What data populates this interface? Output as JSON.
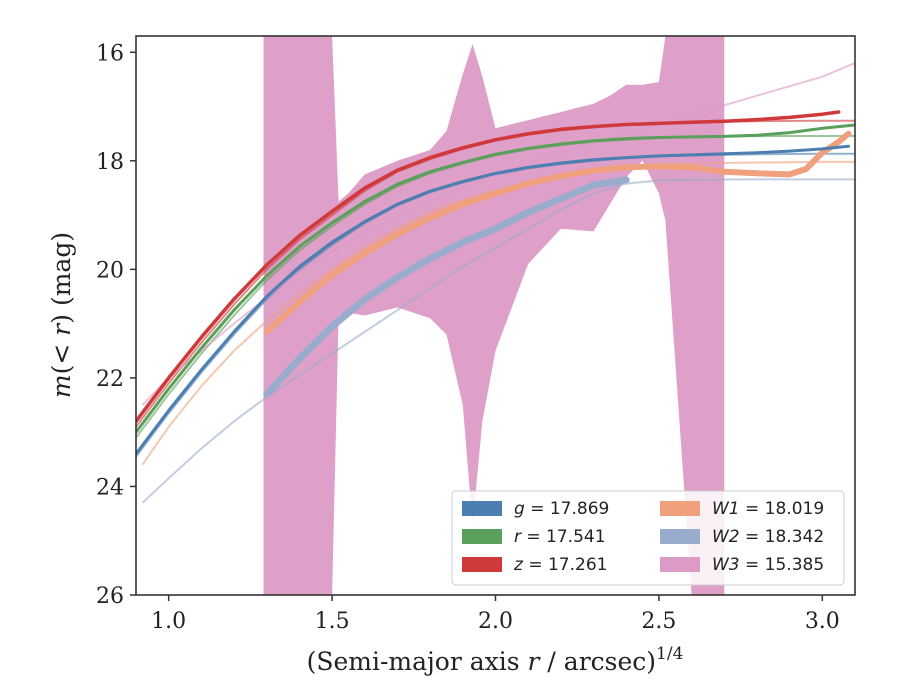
{
  "chart_data": {
    "type": "line",
    "xlabel": "(Semi-major axis r / arcsec)^{1/4}",
    "ylabel": "m(< r) (mag)",
    "xlim": [
      0.9,
      3.1
    ],
    "ylim": [
      26,
      15.7
    ],
    "y_inverted": true,
    "xticks": [
      "1.0",
      "1.5",
      "2.0",
      "2.5",
      "3.0"
    ],
    "yticks": [
      "16",
      "18",
      "20",
      "22",
      "24",
      "26"
    ],
    "legend_position": "lower-right",
    "legend_columns": 2,
    "series": [
      {
        "name": "g = 17.869",
        "label": "g",
        "value_label": "17.869",
        "color": "#4c7fb0",
        "total_mag": 17.869,
        "model_x": [
          0.9,
          1.0,
          1.1,
          1.2,
          1.3,
          1.4,
          1.5,
          1.6,
          1.7,
          1.8,
          1.9,
          2.0,
          2.1,
          2.2,
          2.3,
          2.4,
          2.5,
          2.6,
          2.7,
          2.8,
          2.9,
          3.0,
          3.1
        ],
        "model_y": [
          23.45,
          22.65,
          21.9,
          21.2,
          20.55,
          20.0,
          19.55,
          19.15,
          18.82,
          18.58,
          18.4,
          18.25,
          18.14,
          18.06,
          18.0,
          17.95,
          17.92,
          17.9,
          17.89,
          17.88,
          17.875,
          17.87,
          17.869
        ],
        "obs_x": [
          0.9,
          1.0,
          1.1,
          1.2,
          1.3,
          1.4,
          1.5,
          1.6,
          1.7,
          1.8,
          1.9,
          2.0,
          2.1,
          2.2,
          2.3,
          2.4,
          2.5,
          2.6,
          2.7,
          2.8,
          2.9,
          3.0,
          3.08
        ],
        "obs_y": [
          23.4,
          22.6,
          21.85,
          21.15,
          20.5,
          19.95,
          19.5,
          19.12,
          18.8,
          18.56,
          18.38,
          18.23,
          18.12,
          18.04,
          17.98,
          17.94,
          17.91,
          17.89,
          17.87,
          17.85,
          17.82,
          17.78,
          17.73
        ]
      },
      {
        "name": "r = 17.541",
        "label": "r",
        "value_label": "17.541",
        "color": "#5aa05a",
        "total_mag": 17.541,
        "model_x": [
          0.9,
          1.0,
          1.1,
          1.2,
          1.3,
          1.4,
          1.5,
          1.6,
          1.7,
          1.8,
          1.9,
          2.0,
          2.1,
          2.2,
          2.3,
          2.4,
          2.5,
          2.6,
          2.7,
          2.8,
          2.9,
          3.0,
          3.1
        ],
        "model_y": [
          23.1,
          22.3,
          21.55,
          20.85,
          20.2,
          19.65,
          19.2,
          18.8,
          18.47,
          18.23,
          18.05,
          17.9,
          17.79,
          17.71,
          17.65,
          17.61,
          17.58,
          17.56,
          17.55,
          17.545,
          17.543,
          17.542,
          17.541
        ],
        "obs_x": [
          0.9,
          1.0,
          1.1,
          1.2,
          1.3,
          1.4,
          1.5,
          1.6,
          1.7,
          1.8,
          1.9,
          2.0,
          2.1,
          2.2,
          2.3,
          2.4,
          2.5,
          2.6,
          2.7,
          2.8,
          2.9,
          3.0,
          3.1
        ],
        "obs_y": [
          23.0,
          22.2,
          21.45,
          20.75,
          20.12,
          19.58,
          19.14,
          18.75,
          18.43,
          18.2,
          18.03,
          17.88,
          17.77,
          17.69,
          17.63,
          17.59,
          17.57,
          17.56,
          17.55,
          17.53,
          17.48,
          17.4,
          17.34
        ]
      },
      {
        "name": "z = 17.261",
        "label": "z",
        "value_label": "17.261",
        "color": "#d0393a",
        "total_mag": 17.261,
        "model_x": [
          0.9,
          1.0,
          1.1,
          1.2,
          1.3,
          1.4,
          1.5,
          1.6,
          1.7,
          1.8,
          1.9,
          2.0,
          2.1,
          2.2,
          2.3,
          2.4,
          2.5,
          2.6,
          2.7,
          2.8,
          2.9,
          3.0,
          3.1
        ],
        "model_y": [
          22.9,
          22.1,
          21.35,
          20.65,
          20.0,
          19.45,
          19.0,
          18.55,
          18.2,
          17.97,
          17.78,
          17.63,
          17.52,
          17.44,
          17.38,
          17.34,
          17.31,
          17.29,
          17.28,
          17.27,
          17.265,
          17.262,
          17.261
        ],
        "obs_x": [
          0.9,
          1.0,
          1.1,
          1.2,
          1.3,
          1.4,
          1.5,
          1.6,
          1.7,
          1.8,
          1.9,
          2.0,
          2.1,
          2.2,
          2.3,
          2.4,
          2.5,
          2.6,
          2.7,
          2.8,
          2.9,
          3.0,
          3.05
        ],
        "obs_y": [
          22.8,
          22.0,
          21.25,
          20.55,
          19.92,
          19.38,
          18.93,
          18.5,
          18.17,
          17.94,
          17.76,
          17.61,
          17.5,
          17.42,
          17.37,
          17.33,
          17.31,
          17.29,
          17.27,
          17.24,
          17.2,
          17.14,
          17.1
        ]
      },
      {
        "name": "W1 = 18.019",
        "label": "W1",
        "value_label": "18.019",
        "color": "#f0a07c",
        "total_mag": 18.019,
        "model_x": [
          0.92,
          1.0,
          1.1,
          1.2,
          1.3,
          1.4,
          1.5,
          1.6,
          1.7,
          1.8,
          1.9,
          2.0,
          2.1,
          2.2,
          2.3,
          2.4,
          2.5,
          2.6,
          2.7,
          2.8,
          2.9,
          3.0,
          3.1
        ],
        "model_y": [
          23.6,
          22.9,
          22.15,
          21.5,
          20.95,
          20.45,
          20.0,
          19.6,
          19.25,
          18.95,
          18.72,
          18.55,
          18.4,
          18.28,
          18.18,
          18.11,
          18.07,
          18.05,
          18.04,
          18.03,
          18.025,
          18.02,
          18.019
        ],
        "obs_x": [
          1.3,
          1.4,
          1.5,
          1.6,
          1.7,
          1.8,
          1.9,
          2.0,
          2.1,
          2.2,
          2.3,
          2.4,
          2.5,
          2.6,
          2.7,
          2.8,
          2.9,
          2.95,
          3.0,
          3.05,
          3.08
        ],
        "obs_y": [
          21.15,
          20.6,
          20.1,
          19.7,
          19.35,
          19.05,
          18.8,
          18.6,
          18.42,
          18.28,
          18.18,
          18.12,
          18.1,
          18.12,
          18.2,
          18.23,
          18.25,
          18.15,
          17.85,
          17.65,
          17.5
        ]
      },
      {
        "name": "W2 = 18.342",
        "label": "W2",
        "value_label": "18.342",
        "color": "#9aaccd",
        "total_mag": 18.342,
        "model_x": [
          0.92,
          1.0,
          1.1,
          1.2,
          1.3,
          1.4,
          1.5,
          1.6,
          1.7,
          1.8,
          1.9,
          2.0,
          2.1,
          2.2,
          2.3,
          2.4,
          2.5,
          2.6,
          2.7,
          2.8,
          2.9,
          3.0,
          3.1
        ],
        "model_y": [
          24.3,
          23.85,
          23.3,
          22.8,
          22.35,
          21.95,
          21.55,
          21.15,
          20.75,
          20.35,
          19.95,
          19.6,
          19.25,
          18.9,
          18.6,
          18.42,
          18.36,
          18.35,
          18.345,
          18.343,
          18.342,
          18.342,
          18.342
        ],
        "obs_x": [
          1.3,
          1.4,
          1.5,
          1.6,
          1.7,
          1.8,
          1.9,
          2.0,
          2.1,
          2.2,
          2.3,
          2.35,
          2.4
        ],
        "obs_y": [
          22.3,
          21.65,
          21.05,
          20.55,
          20.15,
          19.8,
          19.5,
          19.25,
          18.95,
          18.7,
          18.45,
          18.4,
          18.35
        ]
      },
      {
        "name": "W3 = 15.385",
        "label": "W3",
        "value_label": "15.385",
        "color": "#dc9ac6",
        "total_mag": 15.385,
        "model_x": [
          0.92,
          1.0,
          1.2,
          1.4,
          1.6,
          1.8,
          2.0,
          2.2,
          2.4,
          2.6,
          2.8,
          3.0,
          3.1
        ],
        "model_y": [
          22.5,
          22.0,
          21.0,
          20.05,
          19.3,
          18.75,
          18.25,
          17.85,
          17.5,
          17.15,
          16.8,
          16.45,
          16.2
        ],
        "band_x": [
          1.29,
          1.3,
          1.5,
          1.52,
          1.55,
          1.6,
          1.7,
          1.8,
          1.85,
          1.9,
          1.93,
          1.96,
          2.0,
          2.1,
          2.2,
          2.3,
          2.35,
          2.4,
          2.45,
          2.5,
          2.52,
          2.6,
          2.7
        ],
        "band_upper": [
          15.7,
          15.7,
          15.7,
          18.75,
          18.6,
          18.25,
          18.0,
          17.8,
          17.45,
          16.4,
          15.85,
          16.45,
          17.4,
          17.25,
          17.1,
          16.95,
          16.8,
          16.6,
          16.6,
          16.55,
          15.7,
          15.7,
          15.7
        ],
        "band_lower": [
          26.0,
          26.0,
          26.0,
          20.85,
          20.8,
          20.85,
          20.7,
          20.9,
          21.2,
          22.5,
          24.7,
          22.8,
          21.5,
          19.9,
          19.25,
          19.3,
          18.8,
          18.3,
          18.0,
          18.6,
          19.1,
          26.0,
          26.0
        ]
      }
    ]
  }
}
